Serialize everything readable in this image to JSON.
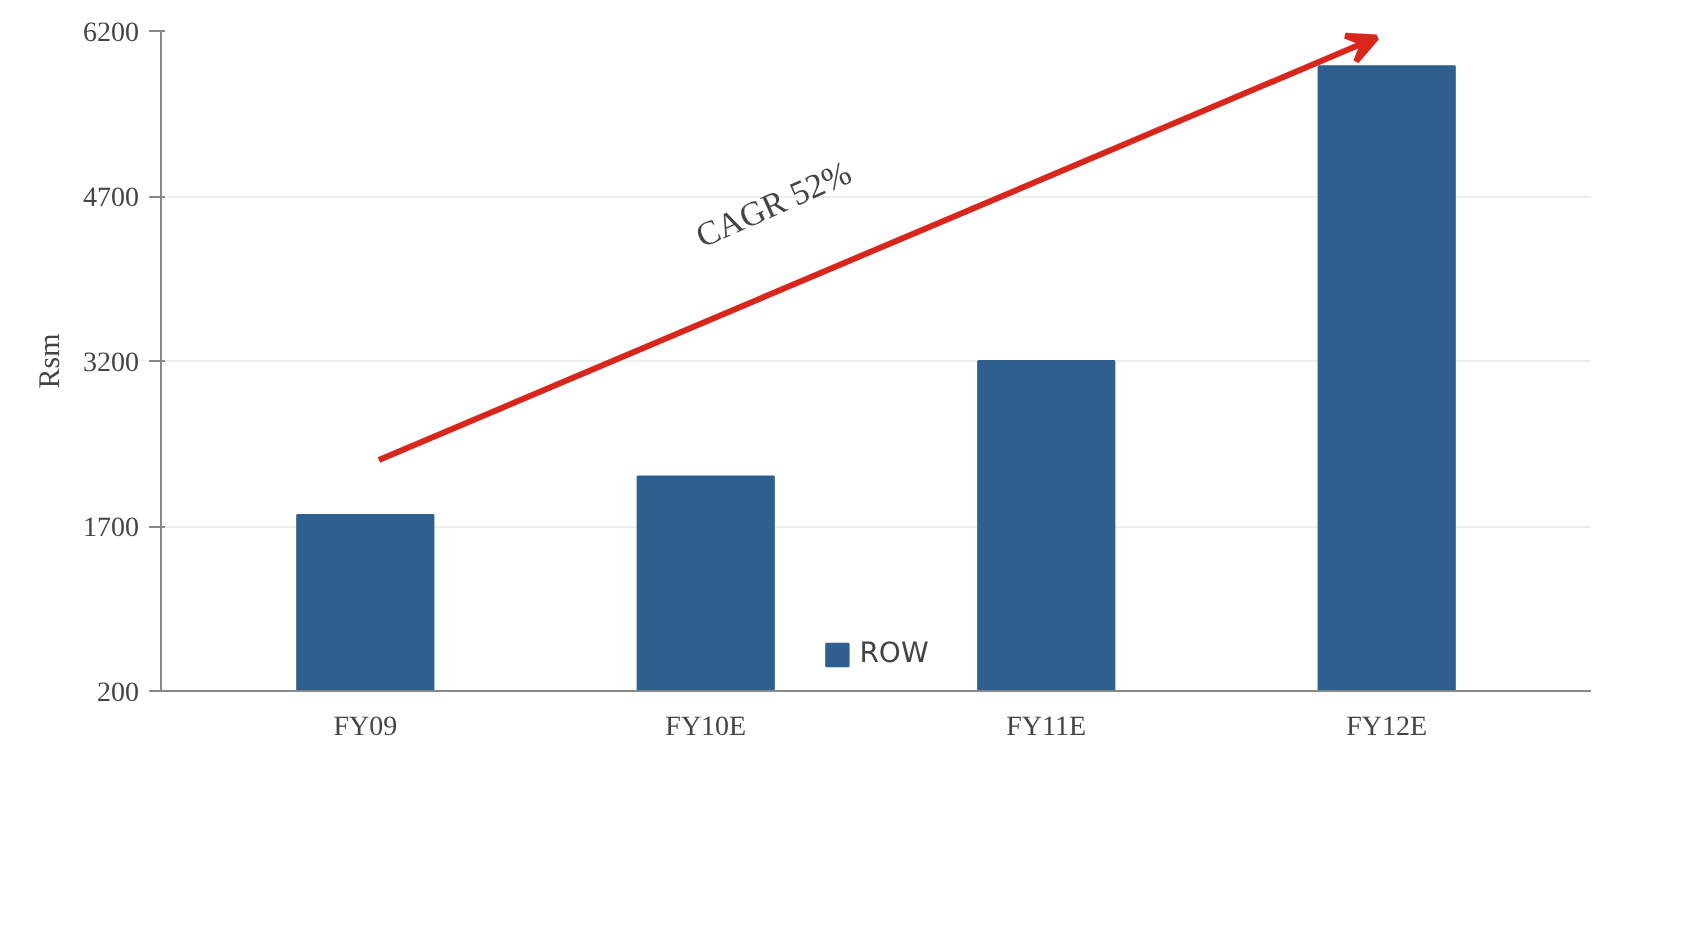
{
  "chart_data": {
    "type": "bar",
    "ylabel": "Rsm",
    "categories": [
      "FY09",
      "FY10E",
      "FY11E",
      "FY12E"
    ],
    "series": [
      {
        "name": "ROW",
        "color": "#2e5f8e",
        "values": [
          1800,
          2150,
          3200,
          5880
        ]
      }
    ],
    "ylim": [
      200,
      6200
    ],
    "yticks": [
      200,
      1700,
      3200,
      4700,
      6200
    ],
    "grid": "y",
    "legend": "bottom",
    "annotations": [
      "CAGR 52%"
    ]
  }
}
